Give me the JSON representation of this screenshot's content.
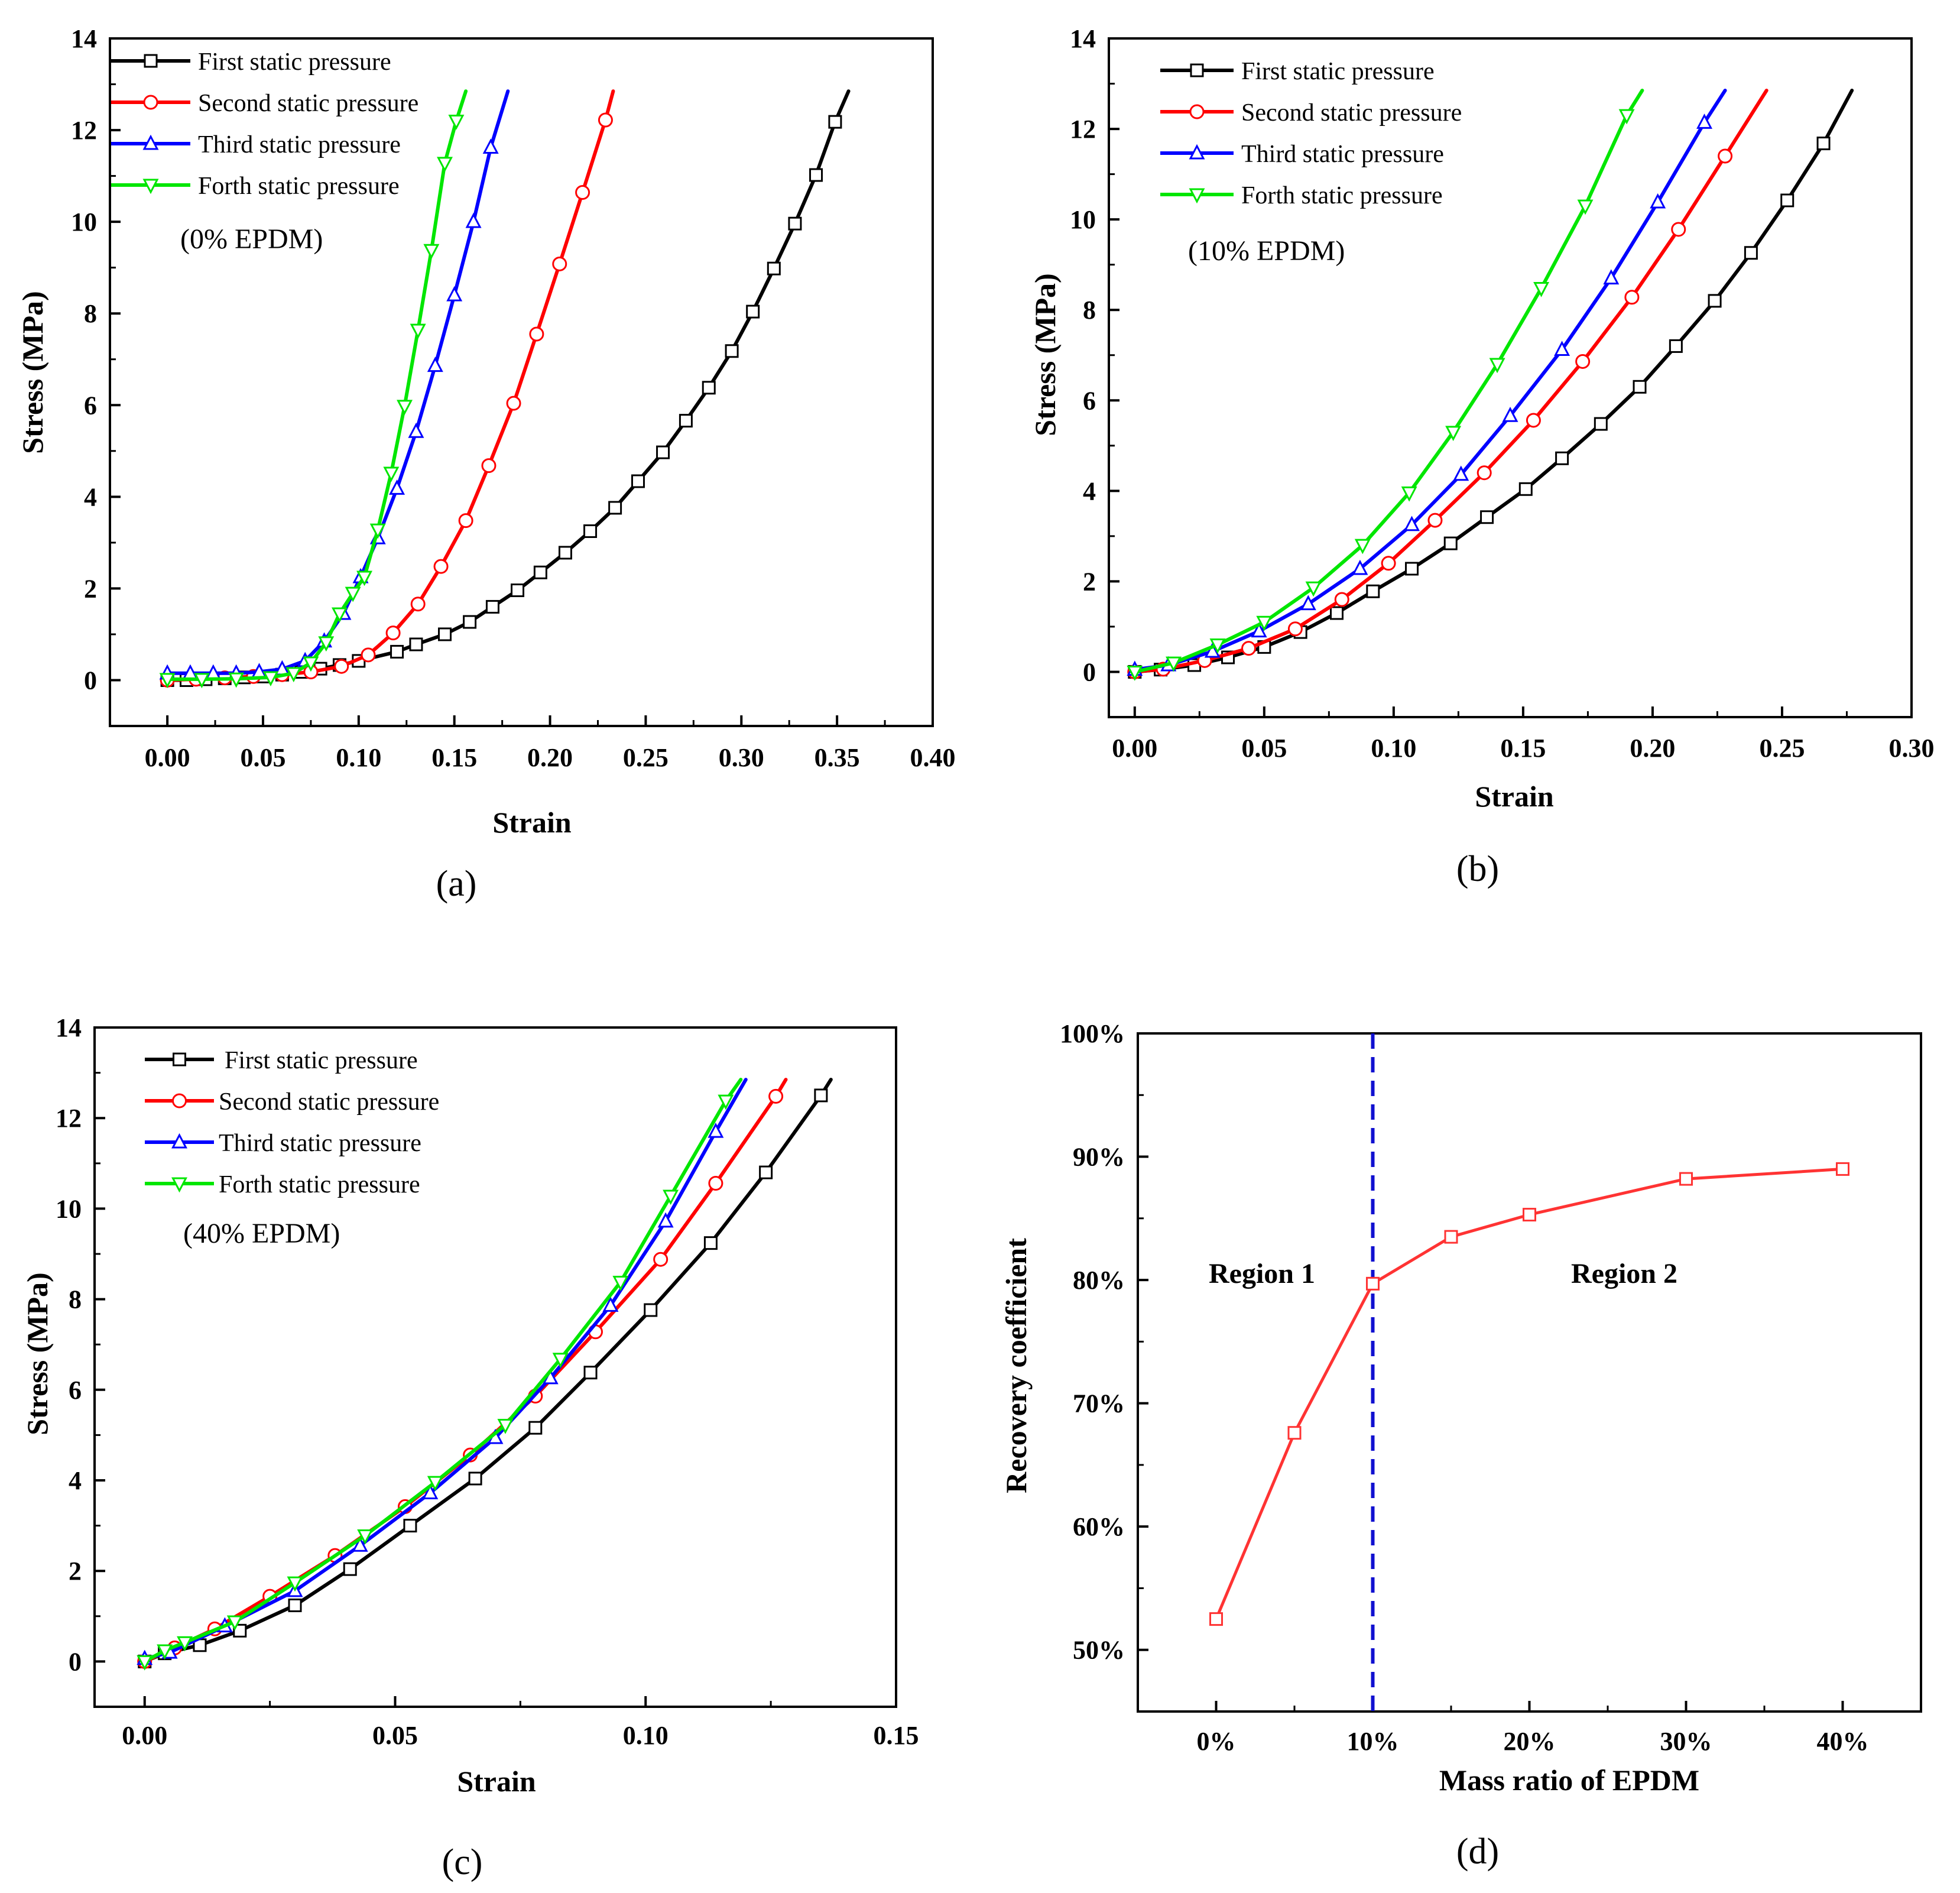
{
  "colors": {
    "black": "#000000",
    "red": "#ff0000",
    "blue": "#0000ff",
    "green": "#00e600",
    "recovery": "#ff3333",
    "divider": "#1010d0"
  },
  "chart_data": [
    {
      "type": "line",
      "panel_label": "(a)",
      "annotation": "(0% EPDM)",
      "xlabel": "Strain",
      "ylabel": "Stress (MPa)",
      "xlim": [
        -0.03,
        0.4
      ],
      "ylim": [
        -1,
        14
      ],
      "xticks": [
        "0.00",
        "0.05",
        "0.10",
        "0.15",
        "0.20",
        "0.25",
        "0.30",
        "0.35",
        "0.40"
      ],
      "yticks": [
        "0",
        "2",
        "4",
        "6",
        "8",
        "10",
        "12",
        "14"
      ],
      "legend_position": "top-left",
      "series": [
        {
          "name": "First static pressure",
          "color_key": "black",
          "marker": "square",
          "x": [
            0.0,
            0.01,
            0.02,
            0.03,
            0.04,
            0.05,
            0.06,
            0.07,
            0.08,
            0.09,
            0.1,
            0.12,
            0.13,
            0.145,
            0.158,
            0.17,
            0.183,
            0.195,
            0.208,
            0.221,
            0.234,
            0.246,
            0.259,
            0.271,
            0.283,
            0.295,
            0.306,
            0.317,
            0.328,
            0.339,
            0.349,
            0.356
          ],
          "y": [
            0.0,
            0.0,
            0.02,
            0.04,
            0.06,
            0.08,
            0.12,
            0.18,
            0.25,
            0.33,
            0.42,
            0.62,
            0.78,
            1.0,
            1.27,
            1.6,
            1.96,
            2.35,
            2.78,
            3.25,
            3.76,
            4.34,
            4.97,
            5.66,
            6.38,
            7.18,
            8.04,
            8.98,
            9.96,
            11.02,
            12.18,
            12.85
          ]
        },
        {
          "name": "Second static pressure",
          "color_key": "red",
          "marker": "circle",
          "x": [
            0.0,
            0.015,
            0.03,
            0.045,
            0.06,
            0.075,
            0.091,
            0.105,
            0.118,
            0.131,
            0.143,
            0.156,
            0.168,
            0.181,
            0.193,
            0.205,
            0.217,
            0.229,
            0.233
          ],
          "y": [
            0.0,
            0.02,
            0.05,
            0.08,
            0.12,
            0.18,
            0.3,
            0.55,
            1.03,
            1.66,
            2.48,
            3.48,
            4.68,
            6.04,
            7.55,
            9.08,
            10.64,
            12.22,
            12.85
          ]
        },
        {
          "name": "Third static pressure",
          "color_key": "blue",
          "marker": "up-triangle",
          "x": [
            0.0,
            0.012,
            0.024,
            0.036,
            0.048,
            0.06,
            0.072,
            0.082,
            0.092,
            0.101,
            0.11,
            0.12,
            0.13,
            0.14,
            0.15,
            0.16,
            0.169,
            0.178
          ],
          "y": [
            0.15,
            0.15,
            0.15,
            0.15,
            0.18,
            0.24,
            0.42,
            0.85,
            1.45,
            2.25,
            3.1,
            4.18,
            5.42,
            6.86,
            8.4,
            10.0,
            11.62,
            12.85
          ]
        },
        {
          "name": "Forth static pressure",
          "color_key": "green",
          "marker": "down-triangle",
          "x": [
            0.0,
            0.018,
            0.036,
            0.054,
            0.066,
            0.075,
            0.083,
            0.09,
            0.097,
            0.103,
            0.11,
            0.117,
            0.124,
            0.131,
            0.138,
            0.145,
            0.151,
            0.156
          ],
          "y": [
            0.02,
            0.02,
            0.03,
            0.06,
            0.15,
            0.38,
            0.82,
            1.45,
            1.9,
            2.25,
            3.28,
            4.52,
            5.98,
            7.64,
            9.38,
            11.28,
            12.2,
            12.85
          ]
        }
      ]
    },
    {
      "type": "line",
      "panel_label": "(b)",
      "annotation": "(10% EPDM)",
      "xlabel": "Strain",
      "ylabel": "Stress (MPa)",
      "xlim": [
        -0.01,
        0.3
      ],
      "ylim": [
        -1,
        14
      ],
      "xticks": [
        "0.00",
        "0.05",
        "0.10",
        "0.15",
        "0.20",
        "0.25",
        "0.30"
      ],
      "yticks": [
        "0",
        "2",
        "4",
        "6",
        "8",
        "10",
        "12",
        "14"
      ],
      "legend_position": "top-left",
      "series": [
        {
          "name": "First static pressure",
          "color_key": "black",
          "marker": "square",
          "x": [
            0.0,
            0.01,
            0.023,
            0.036,
            0.05,
            0.064,
            0.078,
            0.092,
            0.107,
            0.122,
            0.136,
            0.151,
            0.165,
            0.18,
            0.195,
            0.209,
            0.224,
            0.238,
            0.252,
            0.266,
            0.277
          ],
          "y": [
            0.0,
            0.05,
            0.15,
            0.32,
            0.55,
            0.88,
            1.3,
            1.78,
            2.28,
            2.84,
            3.42,
            4.04,
            4.72,
            5.48,
            6.3,
            7.2,
            8.2,
            9.26,
            10.42,
            11.68,
            12.85
          ]
        },
        {
          "name": "Second static pressure",
          "color_key": "red",
          "marker": "circle",
          "x": [
            0.0,
            0.011,
            0.027,
            0.044,
            0.062,
            0.08,
            0.098,
            0.116,
            0.135,
            0.154,
            0.173,
            0.192,
            0.21,
            0.228,
            0.244
          ],
          "y": [
            0.0,
            0.06,
            0.25,
            0.52,
            0.95,
            1.6,
            2.4,
            3.35,
            4.4,
            5.56,
            6.86,
            8.28,
            9.78,
            11.4,
            12.85
          ]
        },
        {
          "name": "Third static pressure",
          "color_key": "blue",
          "marker": "up-triangle",
          "x": [
            0.0,
            0.013,
            0.03,
            0.048,
            0.067,
            0.087,
            0.107,
            0.126,
            0.145,
            0.165,
            0.184,
            0.202,
            0.22,
            0.228
          ],
          "y": [
            0.05,
            0.15,
            0.45,
            0.9,
            1.5,
            2.28,
            3.25,
            4.36,
            5.66,
            7.12,
            8.7,
            10.38,
            12.14,
            12.85
          ]
        },
        {
          "name": "Forth static pressure",
          "color_key": "green",
          "marker": "down-triangle",
          "x": [
            0.0,
            0.015,
            0.032,
            0.05,
            0.069,
            0.088,
            0.106,
            0.123,
            0.14,
            0.157,
            0.174,
            0.19,
            0.196
          ],
          "y": [
            0.0,
            0.2,
            0.6,
            1.1,
            1.86,
            2.8,
            3.96,
            5.3,
            6.8,
            8.48,
            10.3,
            12.3,
            12.85
          ]
        }
      ]
    },
    {
      "type": "line",
      "panel_label": "(c)",
      "annotation": "(40% EPDM)",
      "xlabel": "Strain",
      "ylabel": "Stress (MPa)",
      "xlim": [
        -0.01,
        0.15
      ],
      "ylim": [
        -1,
        14
      ],
      "xticks": [
        "0.00",
        "0.05",
        "0.10",
        "0.15"
      ],
      "yticks": [
        "0",
        "2",
        "4",
        "6",
        "8",
        "10",
        "12",
        "14"
      ],
      "legend_position": "top-left",
      "series": [
        {
          "name": "First static pressure",
          "color_key": "black",
          "marker": "square",
          "x": [
            0.0,
            0.004,
            0.011,
            0.019,
            0.03,
            0.041,
            0.053,
            0.066,
            0.078,
            0.089,
            0.101,
            0.113,
            0.124,
            0.135,
            0.137
          ],
          "y": [
            0.0,
            0.18,
            0.36,
            0.68,
            1.24,
            2.04,
            3.0,
            4.04,
            5.16,
            6.38,
            7.76,
            9.24,
            10.8,
            12.5,
            12.85
          ]
        },
        {
          "name": "Second static pressure",
          "color_key": "red",
          "marker": "circle",
          "x": [
            0.0,
            0.006,
            0.014,
            0.025,
            0.038,
            0.052,
            0.065,
            0.078,
            0.09,
            0.103,
            0.114,
            0.126,
            0.128
          ],
          "y": [
            0.0,
            0.3,
            0.72,
            1.44,
            2.34,
            3.42,
            4.56,
            5.86,
            7.28,
            8.88,
            10.56,
            12.48,
            12.85
          ]
        },
        {
          "name": "Third static pressure",
          "color_key": "blue",
          "marker": "up-triangle",
          "x": [
            0.0,
            0.005,
            0.016,
            0.03,
            0.043,
            0.057,
            0.07,
            0.081,
            0.093,
            0.104,
            0.114,
            0.12
          ],
          "y": [
            0.06,
            0.2,
            0.78,
            1.56,
            2.56,
            3.72,
            4.94,
            6.26,
            7.86,
            9.72,
            11.7,
            12.85
          ]
        },
        {
          "name": "Forth static pressure",
          "color_key": "green",
          "marker": "down-triangle",
          "x": [
            0.0,
            0.004,
            0.008,
            0.018,
            0.03,
            0.044,
            0.058,
            0.072,
            0.083,
            0.095,
            0.105,
            0.116,
            0.119
          ],
          "y": [
            0.0,
            0.24,
            0.42,
            0.88,
            1.74,
            2.78,
            3.96,
            5.22,
            6.68,
            8.38,
            10.28,
            12.38,
            12.85
          ]
        }
      ]
    },
    {
      "type": "line",
      "panel_label": "(d)",
      "xlabel": "Mass ratio of  EPDM",
      "ylabel": "Recovery coefficient",
      "x_categories": [
        "0%",
        "10%",
        "20%",
        "30%",
        "40%"
      ],
      "xlim": [
        -5,
        45
      ],
      "ylim": [
        45,
        100
      ],
      "yticks": [
        "50%",
        "60%",
        "70%",
        "80%",
        "90%",
        "100%"
      ],
      "divider_x": 10,
      "regions": [
        "Region 1",
        "Region 2"
      ],
      "series": [
        {
          "color_key": "recovery",
          "marker": "square",
          "x": [
            0,
            5,
            10,
            15,
            20,
            30,
            40
          ],
          "y": [
            52.5,
            67.6,
            79.7,
            83.5,
            85.3,
            88.2,
            89.0
          ]
        }
      ]
    }
  ]
}
